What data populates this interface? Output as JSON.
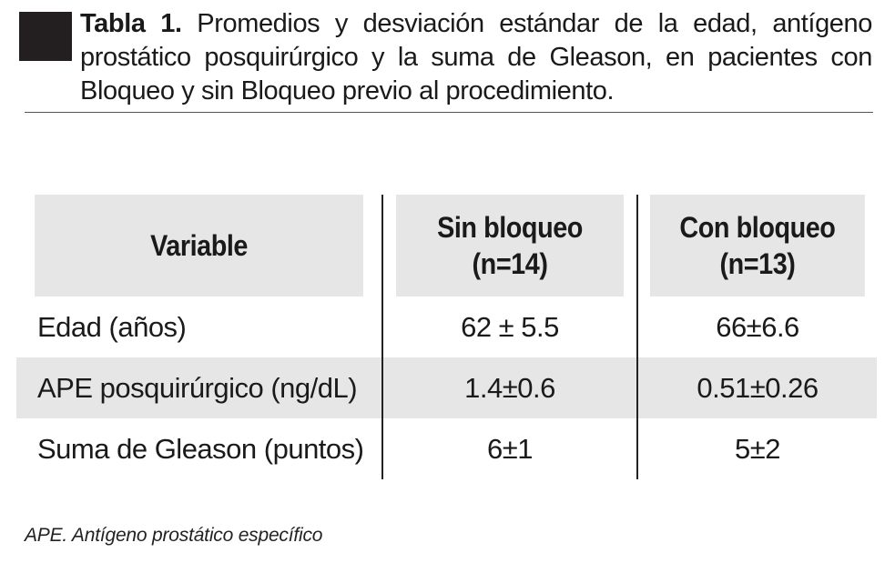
{
  "caption": {
    "label": "Tabla 1.",
    "text": " Promedios y desviación estándar de la edad, antígeno prostático posquirúrgico y la suma de Gleason, en pacientes con Bloqueo y sin Bloqueo previo al procedimiento."
  },
  "table": {
    "headers": {
      "variable": "Variable",
      "sin_bloqueo_line1": "Sin bloqueo",
      "sin_bloqueo_line2": "(n=14)",
      "con_bloqueo_line1": "Con bloqueo",
      "con_bloqueo_line2": "(n=13)"
    },
    "rows": [
      {
        "variable": "Edad (años)",
        "sin_bloqueo": "62 ± 5.5",
        "con_bloqueo": "66±6.6"
      },
      {
        "variable": "APE posquirúrgico (ng/dL)",
        "sin_bloqueo": "1.4±0.6",
        "con_bloqueo": "0.51±0.26"
      },
      {
        "variable": "Suma de Gleason (puntos)",
        "sin_bloqueo": "6±1",
        "con_bloqueo": "5±2"
      }
    ]
  },
  "footnote": "APE. Antígeno prostático específico"
}
